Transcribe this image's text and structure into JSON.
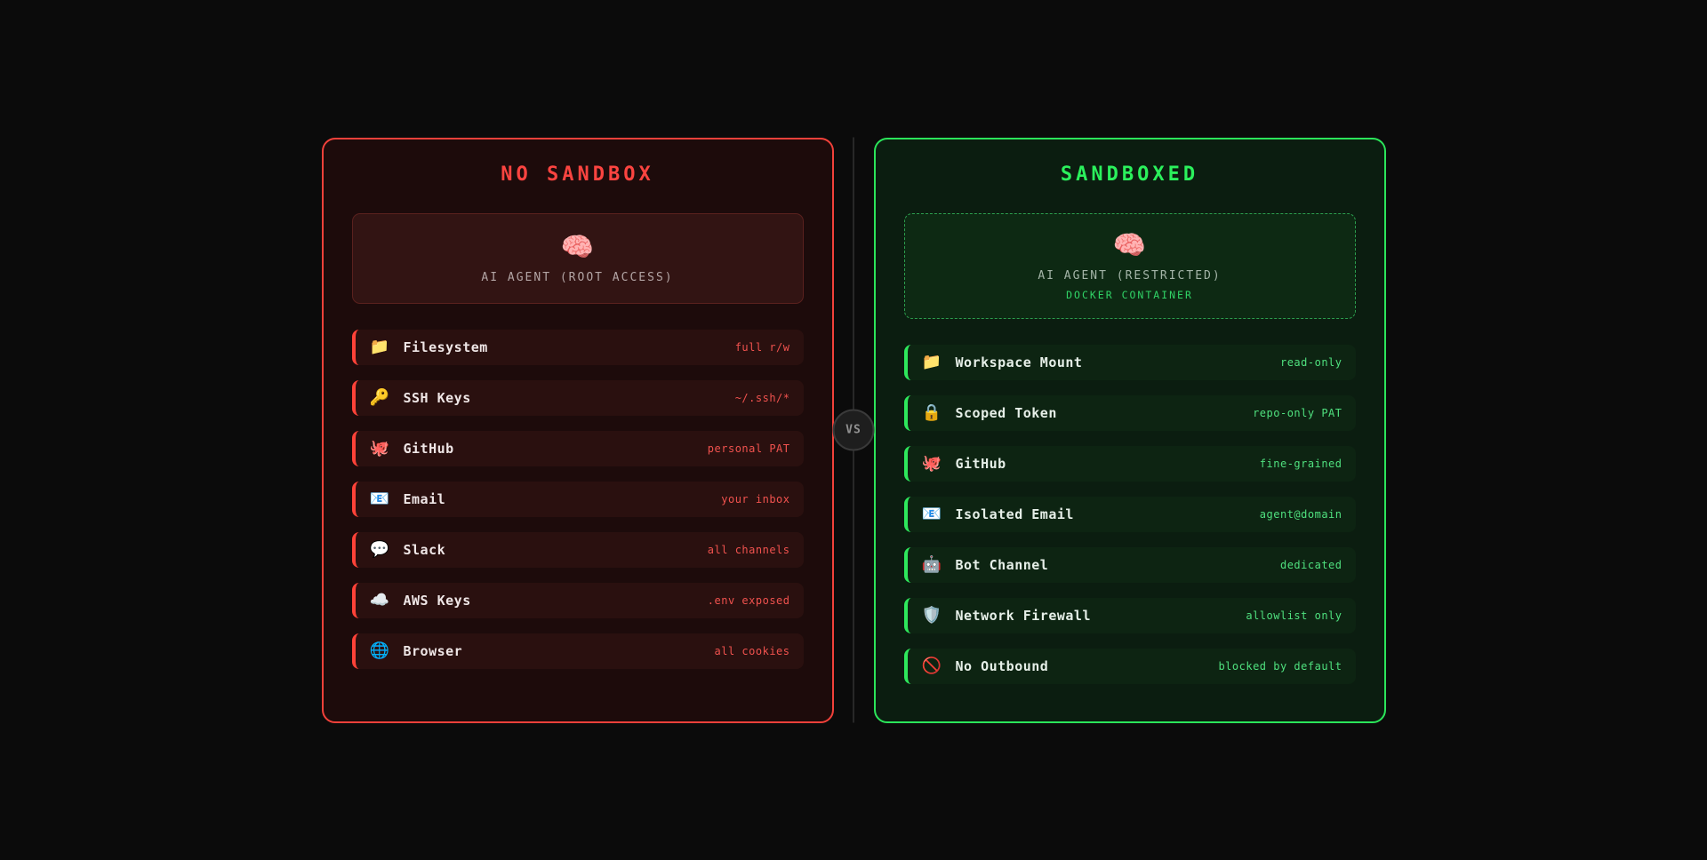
{
  "page": {
    "vs_label": "VS"
  },
  "colors": {
    "accent_red": "#f2413a",
    "accent_green": "#2be55a",
    "title_red": "#fb4440",
    "title_green": "#2bf05c",
    "value_red": "#f0524e",
    "value_green": "#4fe07e",
    "docker_label_green": "#30d366"
  },
  "left_panel": {
    "title": "NO SANDBOX",
    "agent": {
      "icon": "🧠",
      "icon_name": "brain-icon",
      "name": "AI AGENT (ROOT ACCESS)"
    },
    "items": [
      {
        "icon": "📁",
        "icon_name": "folder-icon",
        "label": "Filesystem",
        "value": "full r/w"
      },
      {
        "icon": "🔑",
        "icon_name": "key-icon",
        "label": "SSH Keys",
        "value": "~/.ssh/*"
      },
      {
        "icon": "🐙",
        "icon_name": "octopus-icon",
        "label": "GitHub",
        "value": "personal PAT"
      },
      {
        "icon": "📧",
        "icon_name": "email-icon",
        "label": "Email",
        "value": "your inbox"
      },
      {
        "icon": "💬",
        "icon_name": "speech-balloon-icon",
        "label": "Slack",
        "value": "all channels"
      },
      {
        "icon": "☁️",
        "icon_name": "cloud-icon",
        "label": "AWS Keys",
        "value": ".env exposed"
      },
      {
        "icon": "🌐",
        "icon_name": "globe-icon",
        "label": "Browser",
        "value": "all cookies"
      }
    ]
  },
  "right_panel": {
    "title": "SANDBOXED",
    "agent": {
      "icon": "🧠",
      "icon_name": "brain-icon",
      "name": "AI AGENT (RESTRICTED)",
      "sub": "DOCKER CONTAINER"
    },
    "items": [
      {
        "icon": "📁",
        "icon_name": "folder-icon",
        "label": "Workspace Mount",
        "value": "read-only"
      },
      {
        "icon": "🔒",
        "icon_name": "lock-icon",
        "label": "Scoped Token",
        "value": "repo-only PAT"
      },
      {
        "icon": "🐙",
        "icon_name": "octopus-icon",
        "label": "GitHub",
        "value": "fine-grained"
      },
      {
        "icon": "📧",
        "icon_name": "email-icon",
        "label": "Isolated Email",
        "value": "agent@domain"
      },
      {
        "icon": "🤖",
        "icon_name": "robot-icon",
        "label": "Bot Channel",
        "value": "dedicated"
      },
      {
        "icon": "🛡️",
        "icon_name": "shield-icon",
        "label": "Network Firewall",
        "value": "allowlist only"
      },
      {
        "icon": "🚫",
        "icon_name": "no-entry-icon",
        "label": "No Outbound",
        "value": "blocked by default"
      }
    ]
  }
}
